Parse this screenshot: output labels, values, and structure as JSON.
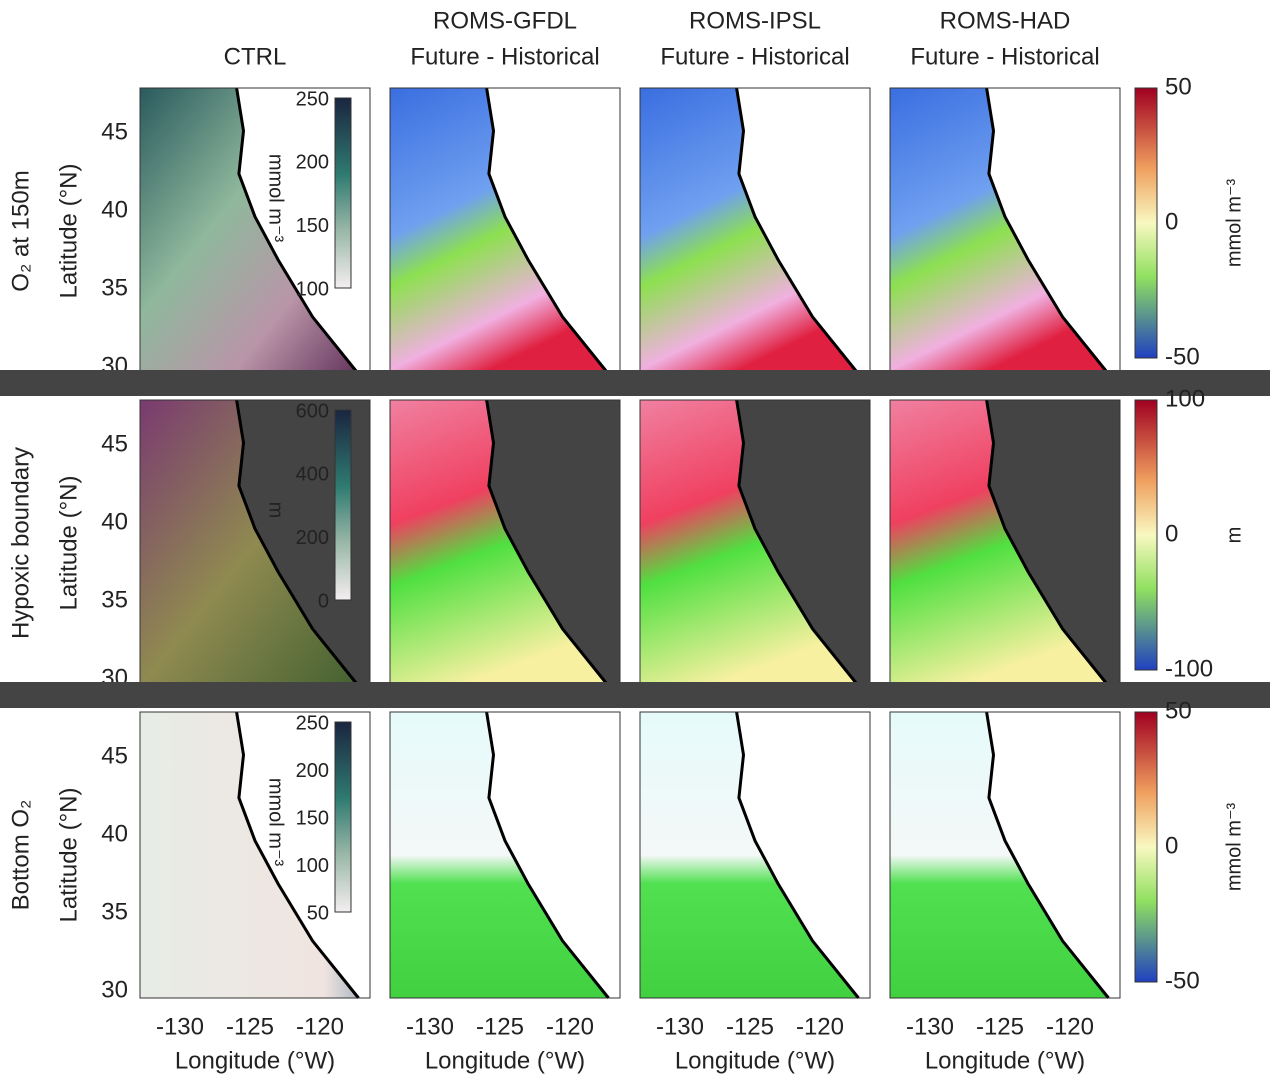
{
  "figure": {
    "columns": [
      {
        "title": "CTRL"
      },
      {
        "title": "ROMS-GFDL",
        "subtitle": "Future - Historical"
      },
      {
        "title": "ROMS-IPSL",
        "subtitle": "Future - Historical"
      },
      {
        "title": "ROMS-HAD",
        "subtitle": "Future - Historical"
      }
    ],
    "rows": [
      {
        "label": "O₂ at 150m",
        "ctrl_ticks": [
          "250",
          "200",
          "150",
          "100"
        ],
        "ctrl_unit": "mmol m⁻³",
        "diff_ticks": [
          "50",
          "0",
          "-50"
        ],
        "diff_unit": "mmol m⁻³"
      },
      {
        "label": "Hypoxic boundary",
        "ctrl_ticks": [
          "600",
          "400",
          "200",
          "0"
        ],
        "ctrl_unit": "m",
        "diff_ticks": [
          "100",
          "0",
          "-100"
        ],
        "diff_unit": "m"
      },
      {
        "label": "Bottom O₂",
        "ctrl_ticks": [
          "250",
          "200",
          "150",
          "100",
          "50"
        ],
        "ctrl_unit": "mmol m⁻³",
        "diff_ticks": [
          "50",
          "0",
          "-50"
        ],
        "diff_unit": "mmol m⁻³"
      }
    ],
    "latitude_label": "Latitude (°N)",
    "latitude_ticks": [
      "45",
      "40",
      "35",
      "30"
    ],
    "longitude_label": "Longitude (°W)",
    "longitude_ticks": [
      "-130",
      "-125",
      "-120"
    ]
  }
}
